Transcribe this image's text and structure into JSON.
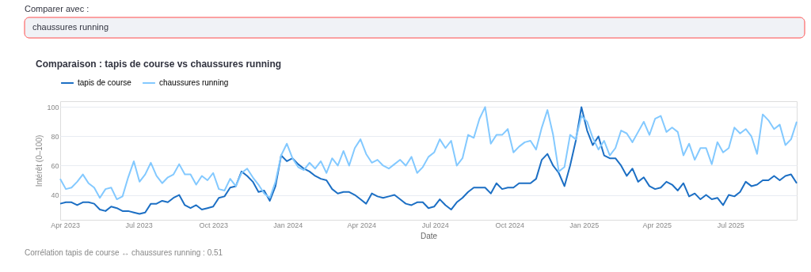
{
  "chart_data": {
    "type": "line",
    "title": "Comparaison : tapis de course vs chaussures running",
    "xlabel": "Date",
    "ylabel": "Intérêt (0–100)",
    "annotations": [
      "Comparer avec :",
      "chaussures running",
      "Corrélation tapis de course ↔ chaussures running : 0.51"
    ],
    "x": [
      "2023-03-26",
      "2023-04-02",
      "2023-04-09",
      "2023-04-16",
      "2023-04-23",
      "2023-04-30",
      "2023-05-07",
      "2023-05-14",
      "2023-05-21",
      "2023-05-28",
      "2023-06-04",
      "2023-06-11",
      "2023-06-18",
      "2023-06-25",
      "2023-07-02",
      "2023-07-09",
      "2023-07-16",
      "2023-07-23",
      "2023-07-30",
      "2023-08-06",
      "2023-08-13",
      "2023-08-20",
      "2023-08-27",
      "2023-09-03",
      "2023-09-10",
      "2023-09-17",
      "2023-09-24",
      "2023-10-01",
      "2023-10-08",
      "2023-10-15",
      "2023-10-22",
      "2023-10-29",
      "2023-11-05",
      "2023-11-12",
      "2023-11-19",
      "2023-11-26",
      "2023-12-03",
      "2023-12-10",
      "2023-12-17",
      "2023-12-24",
      "2023-12-31",
      "2024-01-07",
      "2024-01-14",
      "2024-01-21",
      "2024-01-28",
      "2024-02-04",
      "2024-02-11",
      "2024-02-18",
      "2024-02-25",
      "2024-03-03",
      "2024-03-10",
      "2024-03-17",
      "2024-03-24",
      "2024-03-31",
      "2024-04-07",
      "2024-04-14",
      "2024-04-21",
      "2024-04-28",
      "2024-05-05",
      "2024-05-12",
      "2024-05-19",
      "2024-05-26",
      "2024-06-02",
      "2024-06-09",
      "2024-06-16",
      "2024-06-23",
      "2024-06-30",
      "2024-07-07",
      "2024-07-14",
      "2024-07-21",
      "2024-07-28",
      "2024-08-04",
      "2024-08-11",
      "2024-08-18",
      "2024-08-25",
      "2024-09-01",
      "2024-09-08",
      "2024-09-15",
      "2024-09-22",
      "2024-09-29",
      "2024-10-06",
      "2024-10-13",
      "2024-10-20",
      "2024-10-27",
      "2024-11-03",
      "2024-11-10",
      "2024-11-17",
      "2024-11-24",
      "2024-12-01",
      "2024-12-08",
      "2024-12-15",
      "2024-12-22",
      "2024-12-29",
      "2025-01-05",
      "2025-01-12",
      "2025-01-19",
      "2025-01-26",
      "2025-02-02",
      "2025-02-09",
      "2025-02-16",
      "2025-02-23",
      "2025-03-02",
      "2025-03-09",
      "2025-03-16",
      "2025-03-23",
      "2025-03-30",
      "2025-04-06",
      "2025-04-13",
      "2025-04-20",
      "2025-04-27",
      "2025-05-04",
      "2025-05-11",
      "2025-05-18",
      "2025-05-25",
      "2025-06-01",
      "2025-06-08",
      "2025-06-15",
      "2025-06-22",
      "2025-06-29",
      "2025-07-06",
      "2025-07-13",
      "2025-07-20",
      "2025-07-27",
      "2025-08-03",
      "2025-08-10",
      "2025-08-17",
      "2025-08-24",
      "2025-08-31",
      "2025-09-07",
      "2025-09-14",
      "2025-09-21"
    ],
    "series": [
      {
        "name": "tapis de course",
        "color": "#1c6fc4",
        "values": [
          34,
          35,
          35,
          33,
          35,
          35,
          34,
          30,
          29,
          32,
          31,
          29,
          29,
          28,
          27,
          28,
          34,
          34,
          36,
          35,
          38,
          40,
          33,
          31,
          33,
          30,
          31,
          32,
          38,
          39,
          45,
          46,
          56,
          53,
          49,
          42,
          43,
          36,
          46,
          67,
          63,
          65,
          61,
          58,
          56,
          53,
          51,
          50,
          44,
          41,
          42,
          42,
          40,
          37,
          34,
          41,
          39,
          38,
          39,
          40,
          37,
          34,
          33,
          35,
          35,
          31,
          32,
          37,
          33,
          30,
          35,
          38,
          42,
          45,
          45,
          45,
          41,
          48,
          44,
          45,
          45,
          48,
          48,
          48,
          51,
          64,
          68,
          60,
          55,
          46,
          60,
          77,
          100,
          84,
          74,
          80,
          67,
          65,
          65,
          60,
          53,
          58,
          49,
          52,
          46,
          44,
          45,
          49,
          47,
          43,
          48,
          39,
          41,
          37,
          40,
          37,
          38,
          33,
          40,
          39,
          42,
          49,
          46,
          47,
          50,
          50,
          53,
          50,
          53,
          54,
          48
        ]
      },
      {
        "name": "chaussures running",
        "color": "#83c9ff",
        "values": [
          51,
          44,
          45,
          49,
          54,
          48,
          45,
          38,
          44,
          45,
          37,
          39,
          52,
          63,
          49,
          54,
          62,
          53,
          48,
          52,
          54,
          61,
          54,
          54,
          47,
          53,
          50,
          55,
          44,
          43,
          51,
          46,
          55,
          58,
          52,
          47,
          41,
          38,
          49,
          67,
          75,
          65,
          59,
          57,
          62,
          58,
          63,
          55,
          65,
          60,
          70,
          60,
          72,
          78,
          68,
          62,
          64,
          60,
          58,
          61,
          64,
          60,
          66,
          55,
          59,
          66,
          69,
          78,
          72,
          77,
          60,
          65,
          81,
          79,
          92,
          100,
          75,
          81,
          81,
          85,
          69,
          73,
          76,
          77,
          71,
          86,
          98,
          81,
          56,
          59,
          81,
          78,
          94,
          90,
          79,
          71,
          77,
          67,
          72,
          84,
          82,
          76,
          83,
          90,
          81,
          92,
          94,
          83,
          86,
          83,
          67,
          75,
          64,
          72,
          72,
          61,
          76,
          69,
          72,
          86,
          82,
          85,
          80,
          68,
          95,
          91,
          85,
          88,
          74,
          78,
          90
        ]
      }
    ],
    "xlim": [
      "2023-03-26",
      "2025-09-21"
    ],
    "xticks": [
      {
        "value": "2023-04-01",
        "label": "Apr 2023"
      },
      {
        "value": "2023-07-01",
        "label": "Jul 2023"
      },
      {
        "value": "2023-10-01",
        "label": "Oct 2023"
      },
      {
        "value": "2024-01-01",
        "label": "Jan 2024"
      },
      {
        "value": "2024-04-01",
        "label": "Apr 2024"
      },
      {
        "value": "2024-07-01",
        "label": "Jul 2024"
      },
      {
        "value": "2024-10-01",
        "label": "Oct 2024"
      },
      {
        "value": "2025-01-01",
        "label": "Jan 2025"
      },
      {
        "value": "2025-04-01",
        "label": "Apr 2025"
      },
      {
        "value": "2025-07-01",
        "label": "Jul 2025"
      }
    ],
    "ylim": [
      23,
      104
    ],
    "yticks": [
      40,
      60,
      80,
      100
    ],
    "grid": "y",
    "legend": "top left",
    "marker": "none",
    "line_style": "solid"
  }
}
